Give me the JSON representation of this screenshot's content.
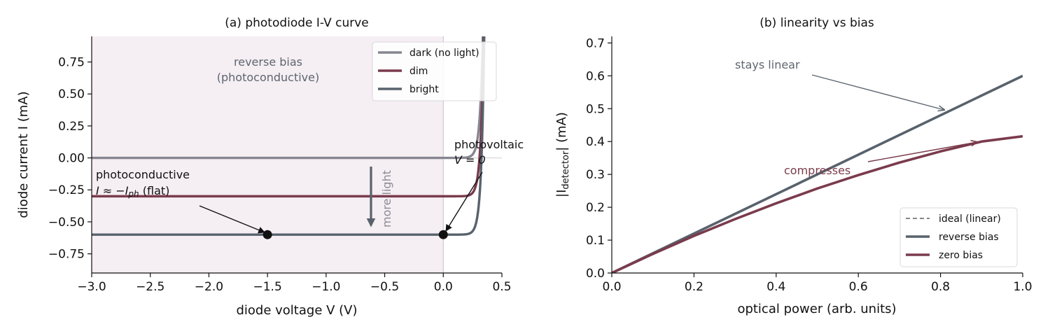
{
  "colors": {
    "dark": "#868690",
    "dim": "#7a3b4c",
    "bright": "#58626c",
    "ideal": "#888888",
    "reverse_region": "#f5eef3",
    "ann_gray": "#5e6670",
    "ann_maroon": "#7a3b4c"
  },
  "chart_data": [
    {
      "type": "line",
      "title": "(a)  photodiode I-V curve",
      "xlabel": "diode voltage  V  (V)",
      "ylabel": "diode current  I  (mA)",
      "xlim": [
        -3.0,
        0.5
      ],
      "ylim": [
        -0.9,
        0.95
      ],
      "xticks": [
        "−3.0",
        "−2.5",
        "−2.0",
        "−1.5",
        "−1.0",
        "−0.5",
        "0.0",
        "0.5"
      ],
      "xtick_values": [
        -3.0,
        -2.5,
        -2.0,
        -1.5,
        -1.0,
        -0.5,
        0.0,
        0.5
      ],
      "yticks": [
        "−0.75",
        "−0.50",
        "−0.25",
        "0.00",
        "0.25",
        "0.50",
        "0.75"
      ],
      "ytick_values": [
        -0.75,
        -0.5,
        -0.25,
        0.0,
        0.25,
        0.5,
        0.75
      ],
      "legend_position": "top-right",
      "series": [
        {
          "name": "dark (no light)",
          "photocurrent": 0.0
        },
        {
          "name": "dim",
          "photocurrent": 0.3
        },
        {
          "name": "bright",
          "photocurrent": 0.6
        }
      ],
      "points": [
        {
          "x": -1.5,
          "y": -0.6
        },
        {
          "x": 0.0,
          "y": -0.6
        }
      ],
      "annotations": {
        "region": "reverse bias\n(photoconductive)",
        "photoconductive_title": "photoconductive",
        "photoconductive_formula": "I ≈ −I",
        "photoconductive_sub": "ph",
        "photoconductive_tail": " (flat)",
        "photovoltaic_title": "photovoltaic",
        "photovoltaic_formula": "V = 0",
        "more_light": "more light"
      }
    },
    {
      "type": "line",
      "title": "(b)  linearity vs bias",
      "xlabel": "optical power  (arb. units)",
      "ylabel_prefix": "|I",
      "ylabel_sub": "detector",
      "ylabel_suffix": "|  (mA)",
      "xlim": [
        0.0,
        1.0
      ],
      "ylim": [
        0.0,
        0.72
      ],
      "xticks": [
        "0.0",
        "0.2",
        "0.4",
        "0.6",
        "0.8",
        "1.0"
      ],
      "xtick_values": [
        0.0,
        0.2,
        0.4,
        0.6,
        0.8,
        1.0
      ],
      "yticks": [
        "0.0",
        "0.1",
        "0.2",
        "0.3",
        "0.4",
        "0.5",
        "0.6",
        "0.7"
      ],
      "ytick_values": [
        0.0,
        0.1,
        0.2,
        0.3,
        0.4,
        0.5,
        0.6,
        0.7
      ],
      "legend_position": "bottom-right",
      "series": [
        {
          "name": "ideal (linear)",
          "x": [
            0.0,
            1.0
          ],
          "y": [
            0.0,
            0.6
          ]
        },
        {
          "name": "reverse bias",
          "x": [
            0.0,
            1.0
          ],
          "y": [
            0.0,
            0.6
          ]
        },
        {
          "name": "zero bias",
          "x": [
            0.0,
            0.1,
            0.2,
            0.3,
            0.4,
            0.5,
            0.6,
            0.7,
            0.8,
            0.9,
            1.0
          ],
          "y": [
            0.0,
            0.058,
            0.113,
            0.164,
            0.212,
            0.257,
            0.298,
            0.336,
            0.37,
            0.4,
            0.416
          ]
        }
      ],
      "annotations": {
        "stays_linear": "stays linear",
        "compresses": "compresses"
      }
    }
  ]
}
